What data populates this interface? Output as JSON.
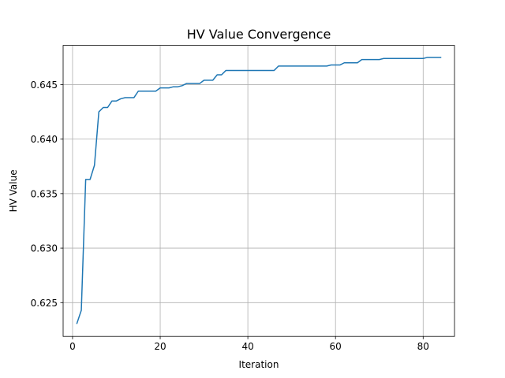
{
  "chart_data": {
    "type": "line",
    "title": "HV Value Convergence",
    "xlabel": "Iteration",
    "ylabel": "HV Value",
    "xlim": [
      -2.15,
      87.15
    ],
    "ylim": [
      0.6219,
      0.6486
    ],
    "xticks": [
      0,
      20,
      40,
      60,
      80
    ],
    "yticks": [
      0.625,
      0.63,
      0.635,
      0.64,
      0.645
    ],
    "xtick_labels": [
      "0",
      "20",
      "40",
      "60",
      "80"
    ],
    "ytick_labels": [
      "0.625",
      "0.630",
      "0.635",
      "0.640",
      "0.645"
    ],
    "grid": true,
    "line_color": "#1f77b4",
    "series": [
      {
        "x": [
          1,
          2,
          3,
          4,
          5,
          6,
          7,
          8,
          9,
          10,
          11,
          12,
          13,
          14,
          15,
          16,
          17,
          18,
          19,
          20,
          21,
          22,
          23,
          24,
          25,
          26,
          27,
          28,
          29,
          30,
          31,
          32,
          33,
          34,
          35,
          36,
          37,
          38,
          39,
          40,
          41,
          42,
          43,
          44,
          45,
          46,
          47,
          48,
          49,
          50,
          51,
          52,
          53,
          54,
          55,
          56,
          57,
          58,
          59,
          60,
          61,
          62,
          63,
          64,
          65,
          66,
          67,
          68,
          69,
          70,
          71,
          72,
          73,
          74,
          75,
          76,
          77,
          78,
          79,
          80,
          81,
          82,
          83,
          84
        ],
        "values": [
          0.6231,
          0.6243,
          0.6363,
          0.6363,
          0.6376,
          0.6425,
          0.6429,
          0.6429,
          0.6435,
          0.6435,
          0.6437,
          0.6438,
          0.6438,
          0.6438,
          0.6444,
          0.6444,
          0.6444,
          0.6444,
          0.6444,
          0.6447,
          0.6447,
          0.6447,
          0.6448,
          0.6448,
          0.6449,
          0.6451,
          0.6451,
          0.6451,
          0.6451,
          0.6454,
          0.6454,
          0.6454,
          0.6459,
          0.6459,
          0.6463,
          0.6463,
          0.6463,
          0.6463,
          0.6463,
          0.6463,
          0.6463,
          0.6463,
          0.6463,
          0.6463,
          0.6463,
          0.6463,
          0.6467,
          0.6467,
          0.6467,
          0.6467,
          0.6467,
          0.6467,
          0.6467,
          0.6467,
          0.6467,
          0.6467,
          0.6467,
          0.6467,
          0.6468,
          0.6468,
          0.6468,
          0.647,
          0.647,
          0.647,
          0.647,
          0.6473,
          0.6473,
          0.6473,
          0.6473,
          0.6473,
          0.6474,
          0.6474,
          0.6474,
          0.6474,
          0.6474,
          0.6474,
          0.6474,
          0.6474,
          0.6474,
          0.6474,
          0.6475,
          0.6475,
          0.6475,
          0.6475
        ]
      }
    ]
  }
}
